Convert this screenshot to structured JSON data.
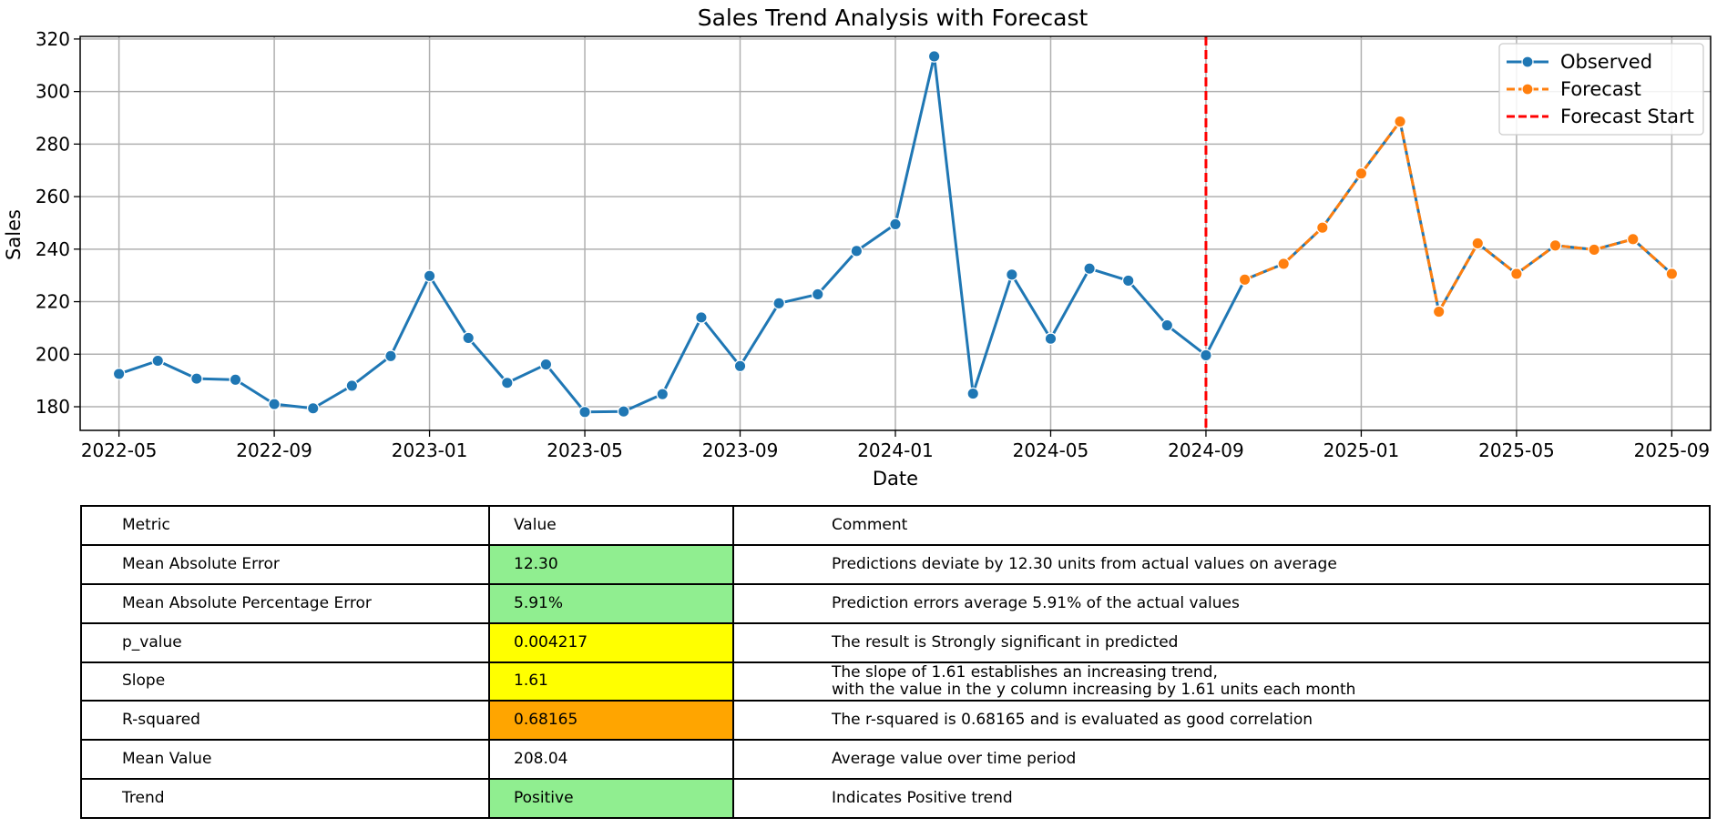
{
  "chart_data": {
    "type": "line",
    "title": "Sales Trend Analysis with Forecast",
    "xlabel": "Date",
    "ylabel": "Sales",
    "ylim": [
      171,
      321
    ],
    "xlim": [
      "2022-04",
      "2025-10"
    ],
    "grid": true,
    "legend_position": "top-right",
    "y_ticks": [
      180,
      200,
      220,
      240,
      260,
      280,
      300,
      320
    ],
    "x_ticks": [
      "2022-05",
      "2022-09",
      "2023-01",
      "2023-05",
      "2023-09",
      "2024-01",
      "2024-05",
      "2024-09",
      "2025-01",
      "2025-05",
      "2025-09"
    ],
    "forecast_start": "2024-09",
    "series": [
      {
        "name": "Observed",
        "color": "#1f77b4",
        "style": "solid",
        "x": [
          "2022-05",
          "2022-06",
          "2022-07",
          "2022-08",
          "2022-09",
          "2022-10",
          "2022-11",
          "2022-12",
          "2023-01",
          "2023-02",
          "2023-03",
          "2023-04",
          "2023-05",
          "2023-06",
          "2023-07",
          "2023-08",
          "2023-09",
          "2023-10",
          "2023-11",
          "2023-12",
          "2024-01",
          "2024-02",
          "2024-03",
          "2024-04",
          "2024-05",
          "2024-06",
          "2024-07",
          "2024-08",
          "2024-09",
          "2024-10",
          "2024-11",
          "2024-12",
          "2025-01",
          "2025-02",
          "2025-03",
          "2025-04",
          "2025-05",
          "2025-06",
          "2025-07",
          "2025-08",
          "2025-09"
        ],
        "values": [
          192.5,
          197.5,
          190.7,
          190.3,
          181.0,
          179.4,
          188.0,
          199.3,
          229.8,
          206.2,
          189.1,
          196.1,
          178.0,
          178.2,
          184.8,
          214.0,
          195.5,
          219.4,
          222.8,
          239.3,
          249.5,
          313.4,
          185.0,
          230.3,
          205.9,
          232.6,
          228.0,
          211.0,
          199.6,
          228.4,
          234.4,
          248.2,
          268.8,
          288.6,
          216.2,
          242.2,
          230.6,
          241.4,
          239.8,
          243.8,
          230.6
        ]
      },
      {
        "name": "Forecast",
        "color": "#ff7f0e",
        "style": "dashed",
        "x": [
          "2024-10",
          "2024-11",
          "2024-12",
          "2025-01",
          "2025-02",
          "2025-03",
          "2025-04",
          "2025-05",
          "2025-06",
          "2025-07",
          "2025-08",
          "2025-09"
        ],
        "values": [
          228.4,
          234.4,
          248.2,
          268.8,
          288.6,
          216.2,
          242.2,
          230.6,
          241.4,
          239.8,
          243.8,
          230.6
        ]
      },
      {
        "name": "Forecast Start",
        "color": "#ff0000",
        "style": "dashed"
      }
    ]
  },
  "table": {
    "headers": [
      "Metric",
      "Value",
      "Comment"
    ],
    "rows": [
      {
        "metric": "Mean Absolute Error",
        "value": "12.30",
        "comment": "Predictions deviate by 12.30 units from actual values on average",
        "color": "#90ee90"
      },
      {
        "metric": "Mean Absolute Percentage Error",
        "value": "5.91%",
        "comment": "Prediction errors average 5.91% of the actual values",
        "color": "#90ee90"
      },
      {
        "metric": "p_value",
        "value": "0.004217",
        "comment": "The result is Strongly significant in predicted",
        "color": "#ffff00"
      },
      {
        "metric": "Slope",
        "value": "1.61",
        "comment": "The slope of 1.61 establishes an increasing trend,\n with the value in the y column increasing by 1.61 units each month",
        "color": "#ffff00"
      },
      {
        "metric": "R-squared",
        "value": "0.68165",
        "comment": "The r-squared is 0.68165 and is evaluated as good correlation",
        "color": "#ffa500"
      },
      {
        "metric": "Mean Value",
        "value": "208.04",
        "comment": "Average value over time period",
        "color": "#ffffff"
      },
      {
        "metric": "Trend",
        "value": "Positive",
        "comment": "Indicates Positive trend",
        "color": "#90ee90"
      }
    ]
  }
}
